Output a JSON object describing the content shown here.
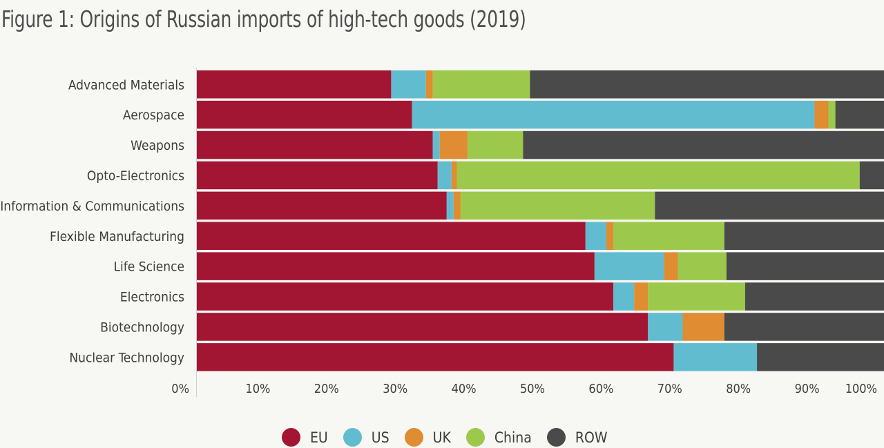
{
  "title": "Figure 1: Origins of Russian imports of high-tech goods (2019)",
  "colors": {
    "EU": "#a31633",
    "US": "#62bcd0",
    "UK": "#e08c32",
    "China": "#9cc94b",
    "ROW": "#4a4a4a"
  },
  "chart_data": {
    "type": "bar",
    "orientation": "horizontal",
    "stacked": true,
    "title": "Figure 1: Origins of Russian imports of high-tech goods (2019)",
    "categories": [
      "Advanced Materials",
      "Aerospace",
      "Weapons",
      "Opto-Electronics",
      "Information & Communications",
      "Flexible Manufacturing",
      "Life Science",
      "Electronics",
      "Biotechnology",
      "Nuclear Technology"
    ],
    "series": [
      {
        "name": "EU",
        "values": [
          28,
          31,
          34,
          34.7,
          36,
          56,
          57.3,
          60,
          65,
          68.7
        ]
      },
      {
        "name": "US",
        "values": [
          5,
          58,
          1,
          2,
          1,
          3,
          10,
          3,
          5,
          12
        ]
      },
      {
        "name": "UK",
        "values": [
          1,
          2,
          4,
          0.8,
          1,
          1,
          2,
          2,
          6,
          0
        ]
      },
      {
        "name": "China",
        "values": [
          14,
          1,
          8,
          58,
          28,
          16,
          7,
          14,
          0,
          0
        ]
      },
      {
        "name": "ROW",
        "values": [
          52,
          8,
          53,
          4.5,
          34,
          24,
          23.7,
          21,
          24,
          19.3
        ]
      }
    ],
    "xlim": [
      0,
      100
    ],
    "x_ticks": [
      "0%",
      "10%",
      "20%",
      "30%",
      "40%",
      "50%",
      "60%",
      "70%",
      "80%",
      "90%",
      "100%"
    ],
    "legend": {
      "position": "bottom",
      "entries": [
        "EU",
        "US",
        "UK",
        "China",
        "ROW"
      ]
    }
  }
}
